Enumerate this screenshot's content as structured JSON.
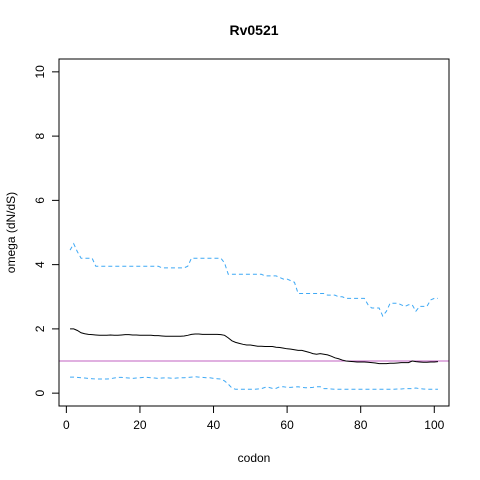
{
  "chart_data": {
    "type": "line",
    "title": "Rv0521",
    "xlabel": "codon",
    "ylabel": "omega (dN/dS)",
    "xlim": [
      -2,
      104
    ],
    "ylim": [
      -0.4,
      10.4
    ],
    "xticks": [
      0,
      20,
      40,
      60,
      80,
      100
    ],
    "yticks": [
      0,
      2,
      4,
      6,
      8,
      10
    ],
    "grid": false,
    "colors": {
      "mean": "#000000",
      "ci": "#3fa9f5",
      "reference": "#c060c0"
    },
    "reference_line": {
      "y": 1
    },
    "x": [
      1,
      2,
      3,
      4,
      5,
      6,
      7,
      8,
      9,
      10,
      11,
      12,
      13,
      14,
      15,
      16,
      17,
      18,
      19,
      20,
      21,
      22,
      23,
      24,
      25,
      26,
      27,
      28,
      29,
      30,
      31,
      32,
      33,
      34,
      35,
      36,
      37,
      38,
      39,
      40,
      41,
      42,
      43,
      44,
      45,
      46,
      47,
      48,
      49,
      50,
      51,
      52,
      53,
      54,
      55,
      56,
      57,
      58,
      59,
      60,
      61,
      62,
      63,
      64,
      65,
      66,
      67,
      68,
      69,
      70,
      71,
      72,
      73,
      74,
      75,
      76,
      77,
      78,
      79,
      80,
      81,
      82,
      83,
      84,
      85,
      86,
      87,
      88,
      89,
      90,
      91,
      92,
      93,
      94,
      95,
      96,
      97,
      98,
      99,
      100,
      101
    ],
    "series": [
      {
        "role": "upper",
        "style": "dashed",
        "values": [
          4.45,
          4.65,
          4.4,
          4.2,
          4.2,
          4.2,
          4.2,
          3.95,
          3.95,
          3.95,
          3.95,
          3.95,
          3.95,
          3.95,
          3.95,
          3.95,
          3.95,
          3.95,
          3.95,
          3.95,
          3.95,
          3.95,
          3.95,
          3.95,
          3.95,
          3.9,
          3.9,
          3.9,
          3.9,
          3.9,
          3.9,
          3.9,
          3.95,
          4.2,
          4.2,
          4.2,
          4.2,
          4.2,
          4.2,
          4.2,
          4.2,
          4.2,
          4.05,
          3.7,
          3.7,
          3.7,
          3.7,
          3.7,
          3.7,
          3.7,
          3.7,
          3.7,
          3.7,
          3.65,
          3.65,
          3.65,
          3.65,
          3.6,
          3.55,
          3.55,
          3.5,
          3.45,
          3.1,
          3.1,
          3.1,
          3.1,
          3.1,
          3.1,
          3.1,
          3.1,
          3.05,
          3.05,
          3.05,
          3.0,
          3.0,
          2.95,
          2.95,
          2.95,
          2.95,
          2.95,
          2.95,
          2.75,
          2.65,
          2.65,
          2.65,
          2.4,
          2.55,
          2.8,
          2.8,
          2.8,
          2.75,
          2.7,
          2.75,
          2.75,
          2.55,
          2.7,
          2.7,
          2.7,
          2.9,
          2.95,
          2.95
        ]
      },
      {
        "role": "mean",
        "style": "solid",
        "values": [
          2.0,
          2.0,
          1.95,
          1.88,
          1.85,
          1.83,
          1.82,
          1.81,
          1.8,
          1.8,
          1.8,
          1.81,
          1.8,
          1.8,
          1.81,
          1.82,
          1.82,
          1.81,
          1.81,
          1.8,
          1.8,
          1.8,
          1.8,
          1.79,
          1.79,
          1.78,
          1.77,
          1.77,
          1.77,
          1.77,
          1.77,
          1.78,
          1.8,
          1.83,
          1.84,
          1.84,
          1.83,
          1.83,
          1.83,
          1.83,
          1.83,
          1.82,
          1.8,
          1.72,
          1.63,
          1.58,
          1.55,
          1.52,
          1.5,
          1.5,
          1.48,
          1.46,
          1.46,
          1.45,
          1.45,
          1.45,
          1.43,
          1.42,
          1.4,
          1.38,
          1.37,
          1.35,
          1.33,
          1.33,
          1.3,
          1.27,
          1.23,
          1.21,
          1.23,
          1.21,
          1.19,
          1.15,
          1.1,
          1.07,
          1.03,
          1.0,
          0.99,
          0.98,
          0.97,
          0.97,
          0.97,
          0.96,
          0.95,
          0.94,
          0.92,
          0.92,
          0.92,
          0.93,
          0.93,
          0.94,
          0.95,
          0.95,
          0.95,
          1.0,
          0.98,
          0.97,
          0.96,
          0.96,
          0.97,
          0.97,
          0.98
        ]
      },
      {
        "role": "lower",
        "style": "dashed",
        "values": [
          0.5,
          0.5,
          0.49,
          0.48,
          0.47,
          0.46,
          0.45,
          0.44,
          0.44,
          0.44,
          0.44,
          0.45,
          0.47,
          0.49,
          0.49,
          0.48,
          0.47,
          0.46,
          0.47,
          0.48,
          0.49,
          0.49,
          0.48,
          0.47,
          0.46,
          0.47,
          0.48,
          0.47,
          0.46,
          0.47,
          0.48,
          0.48,
          0.49,
          0.5,
          0.51,
          0.5,
          0.49,
          0.48,
          0.48,
          0.46,
          0.45,
          0.44,
          0.38,
          0.28,
          0.16,
          0.12,
          0.12,
          0.12,
          0.12,
          0.12,
          0.12,
          0.13,
          0.14,
          0.18,
          0.18,
          0.15,
          0.15,
          0.2,
          0.2,
          0.18,
          0.18,
          0.19,
          0.2,
          0.18,
          0.17,
          0.17,
          0.18,
          0.2,
          0.2,
          0.14,
          0.14,
          0.13,
          0.12,
          0.12,
          0.12,
          0.12,
          0.12,
          0.12,
          0.12,
          0.12,
          0.12,
          0.12,
          0.12,
          0.12,
          0.12,
          0.12,
          0.12,
          0.12,
          0.12,
          0.13,
          0.13,
          0.14,
          0.14,
          0.14,
          0.16,
          0.14,
          0.13,
          0.12,
          0.12,
          0.12,
          0.12
        ]
      }
    ]
  }
}
